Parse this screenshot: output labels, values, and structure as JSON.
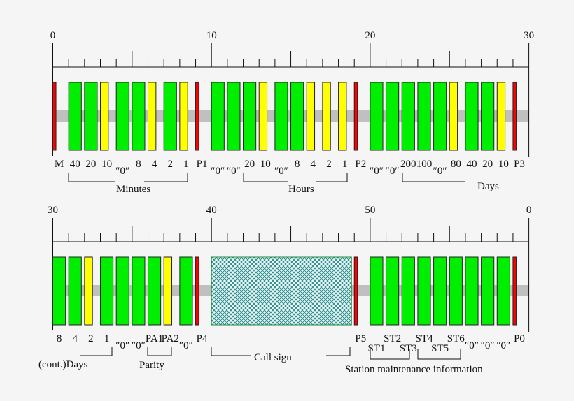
{
  "colors": {
    "marker": "#ff0000",
    "zero": "#00ee00",
    "one": "#ffff00",
    "callsign_stroke": "#1a8a3a",
    "callsign_hatch": "#2a8a8a",
    "band": "#c0c0c0"
  },
  "pulse_seconds": {
    "marker": 0.2,
    "one": 0.5,
    "zero": 0.8
  },
  "rows": [
    {
      "ruler_labels": [
        "0",
        "10",
        "20",
        "30"
      ],
      "pulses": [
        "marker",
        "zero",
        "zero",
        "one",
        "zero",
        "zero",
        "one",
        "zero",
        "one",
        "marker",
        "zero",
        "zero",
        "zero",
        "one",
        "zero",
        "zero",
        "one",
        "one",
        "one",
        "marker",
        "zero",
        "zero",
        "zero",
        "zero",
        "zero",
        "one",
        "zero",
        "zero",
        "one",
        "marker"
      ],
      "labels": [
        "M",
        "40",
        "20",
        "10",
        "″0″",
        "8",
        "4",
        "2",
        "1",
        "P1",
        "″0″",
        "″0″",
        "20",
        "10",
        "″0″",
        "8",
        "4",
        "2",
        "1",
        "P2",
        "″0″",
        "″0″",
        "200",
        "100",
        "″0″",
        "80",
        "40",
        "20",
        "10",
        "P3"
      ],
      "groups": {
        "minutes": "Minutes",
        "hours": "Hours",
        "days": "Days"
      }
    },
    {
      "ruler_labels": [
        "30",
        "40",
        "50",
        "0"
      ],
      "pulses": [
        "zero",
        "zero",
        "one",
        "zero",
        "zero",
        "zero",
        "zero",
        "one",
        "zero",
        "marker",
        "callsign",
        "callsign",
        "callsign",
        "callsign",
        "callsign",
        "callsign",
        "callsign",
        "callsign",
        "callsign",
        "marker",
        "zero",
        "zero",
        "zero",
        "zero",
        "zero",
        "zero",
        "zero",
        "zero",
        "zero",
        "marker"
      ],
      "labels": [
        "8",
        "4",
        "2",
        "1",
        "″0″",
        "″0″",
        "PA1",
        "PA2",
        "″0″",
        "P4",
        "",
        "",
        "",
        "",
        "",
        "",
        "",
        "",
        "",
        "P5",
        "ST1",
        "ST2",
        "ST3",
        "ST4",
        "ST5",
        "ST6",
        "″0″",
        "″0″",
        "″0″",
        "P0"
      ],
      "groups": {
        "days_cont": "(cont.)Days",
        "parity": "Parity",
        "call_sign": "Call sign",
        "station": "Station maintenance information"
      }
    }
  ]
}
